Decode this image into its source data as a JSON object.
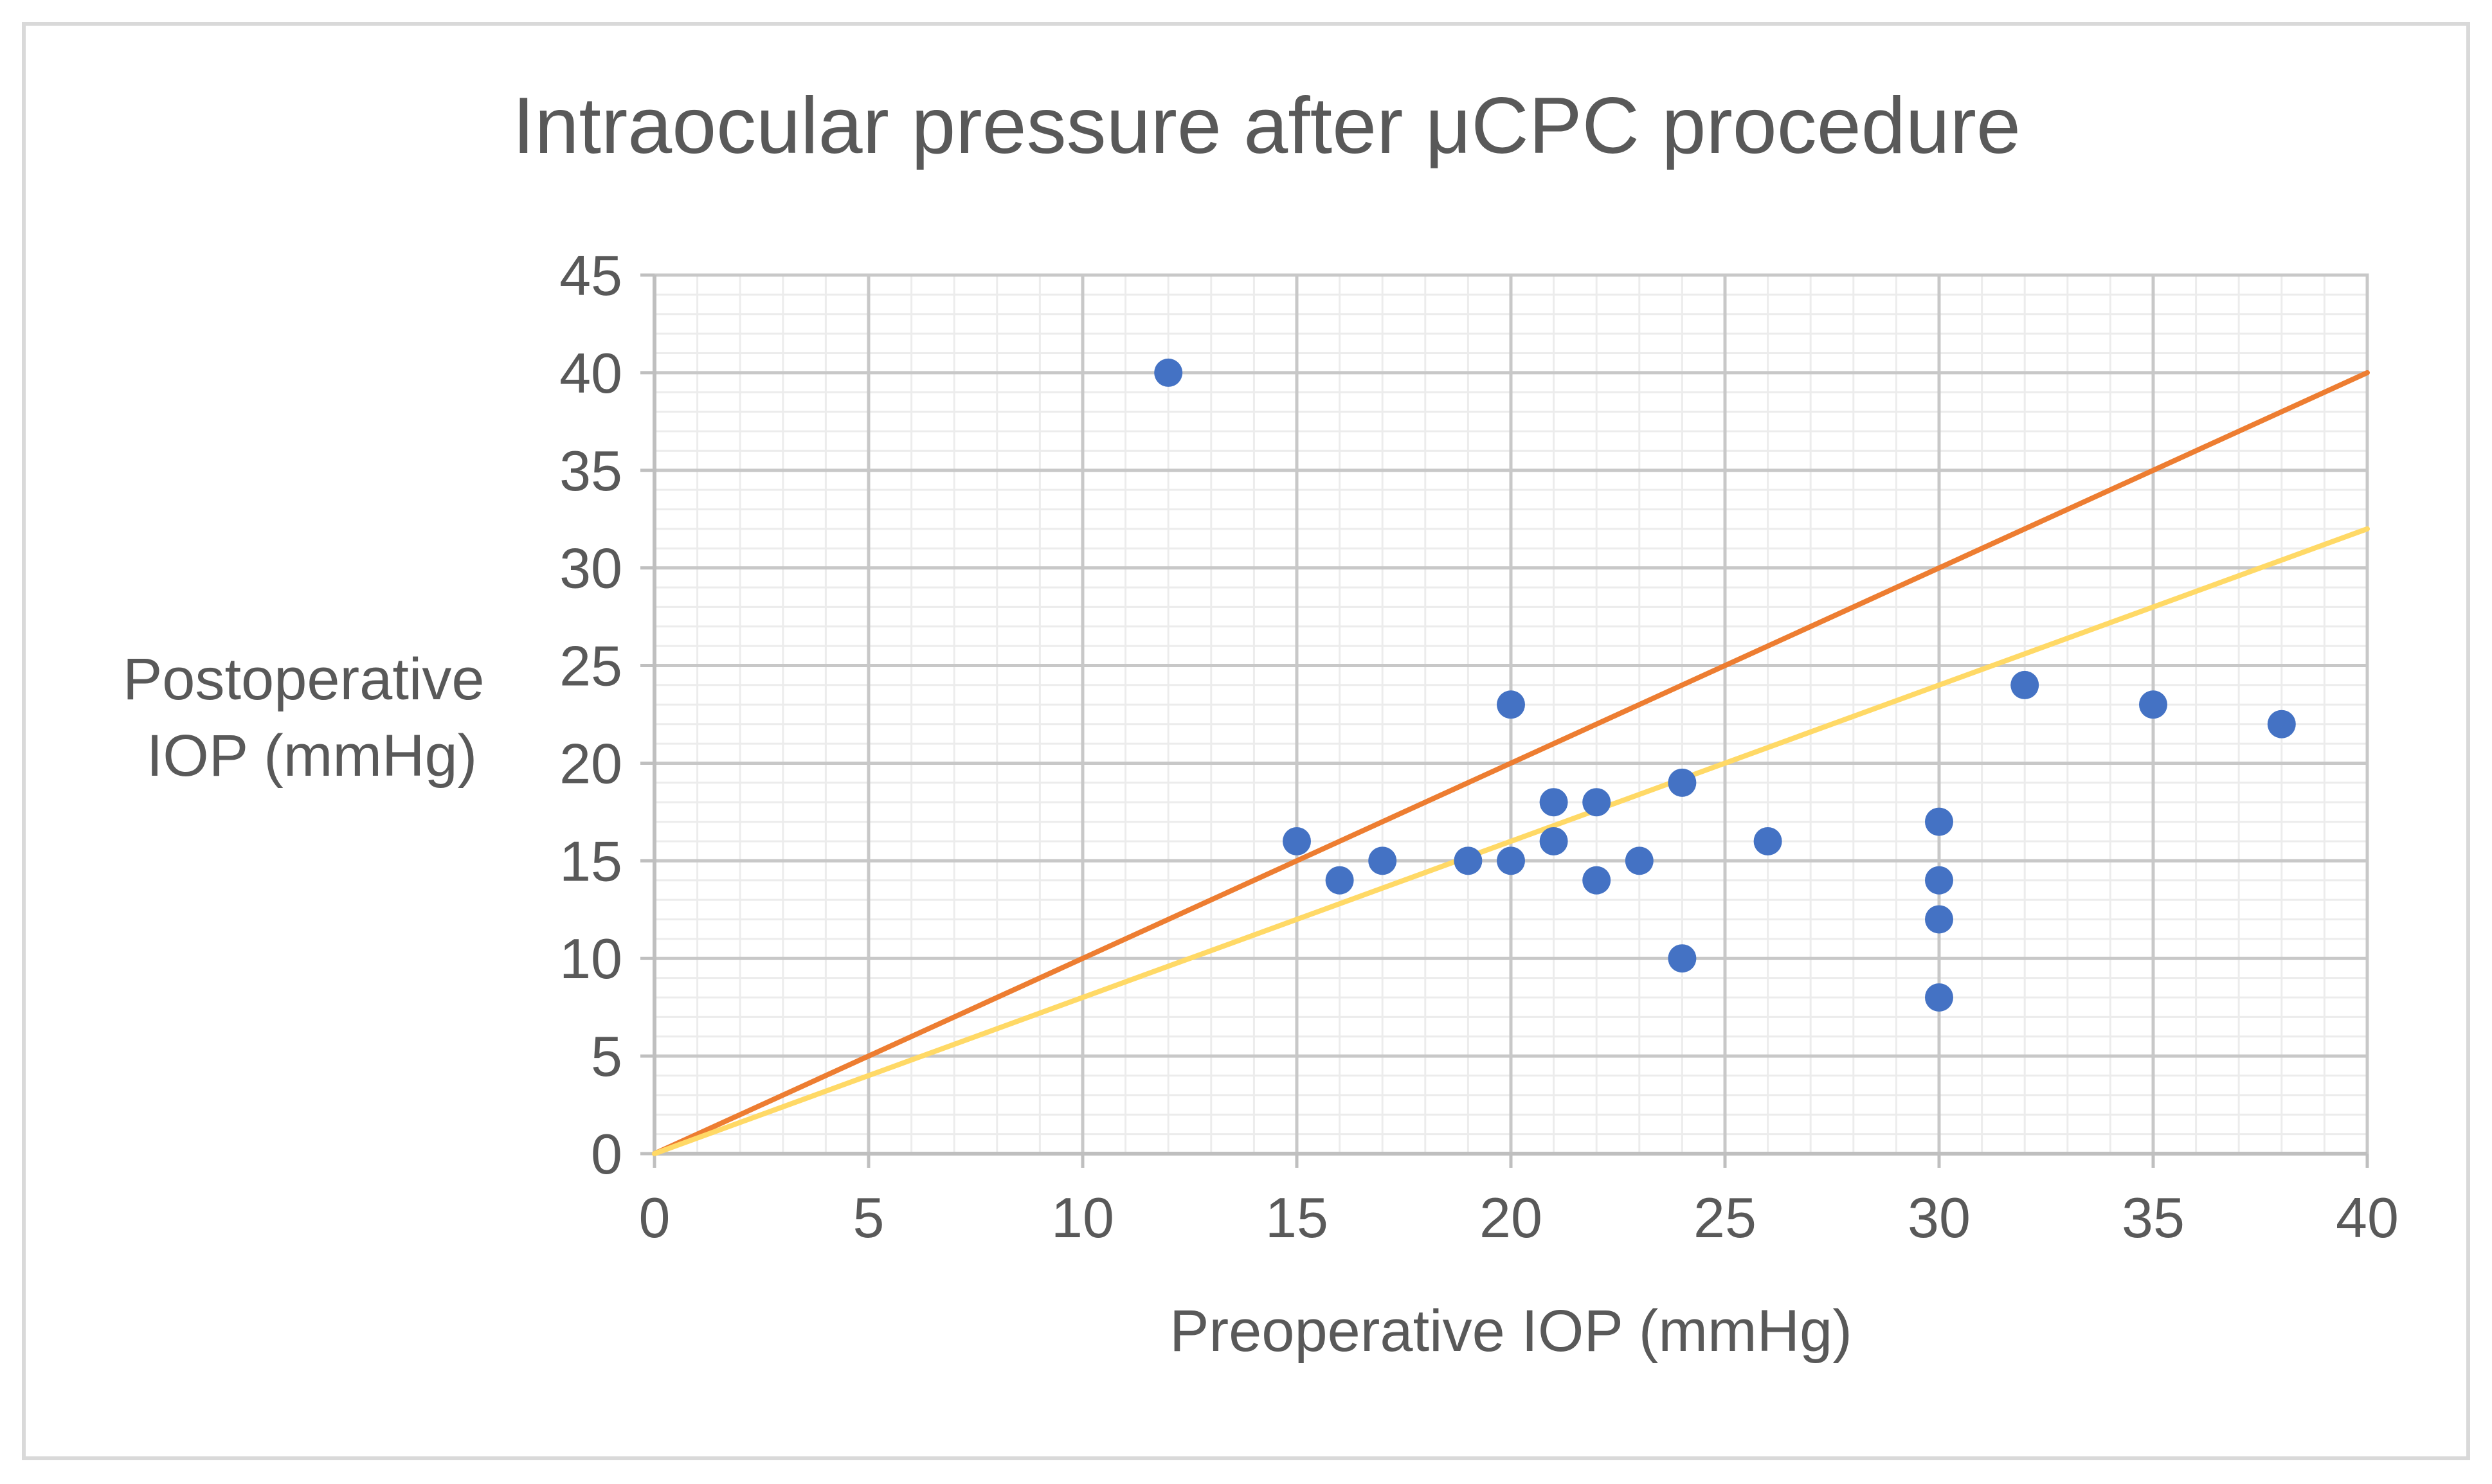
{
  "chart_data": {
    "type": "scatter",
    "title": "Intraocular pressure after μCPC procedure",
    "xlabel": "Preoperative IOP (mmHg)",
    "ylabel_lines": [
      "Postoperative",
      "IOP (mmHg)"
    ],
    "xlim": [
      0,
      40
    ],
    "ylim": [
      0,
      45
    ],
    "x_ticks": [
      0,
      5,
      10,
      15,
      20,
      25,
      30,
      35,
      40
    ],
    "y_ticks": [
      0,
      5,
      10,
      15,
      20,
      25,
      30,
      35,
      40,
      45
    ],
    "grid": true,
    "minor_grid": true,
    "legend": "none",
    "series": [
      {
        "type": "scatter",
        "color": "#4472c4",
        "points": [
          [
            12,
            40
          ],
          [
            15,
            16
          ],
          [
            16,
            14
          ],
          [
            17,
            15
          ],
          [
            19,
            15
          ],
          [
            20,
            15
          ],
          [
            20,
            23
          ],
          [
            21,
            16
          ],
          [
            21,
            18
          ],
          [
            22,
            18
          ],
          [
            22,
            14
          ],
          [
            23,
            15
          ],
          [
            24,
            19
          ],
          [
            24,
            10
          ],
          [
            26,
            16
          ],
          [
            30,
            17
          ],
          [
            30,
            14
          ],
          [
            30,
            12
          ],
          [
            30,
            8
          ],
          [
            32,
            24
          ],
          [
            35,
            23
          ],
          [
            38,
            22
          ]
        ]
      },
      {
        "type": "line",
        "color": "#ed7d31",
        "points": [
          [
            0,
            0
          ],
          [
            40,
            40
          ]
        ]
      },
      {
        "type": "line",
        "color": "#ffd966",
        "points": [
          [
            0,
            0
          ],
          [
            40,
            32
          ]
        ]
      }
    ]
  }
}
